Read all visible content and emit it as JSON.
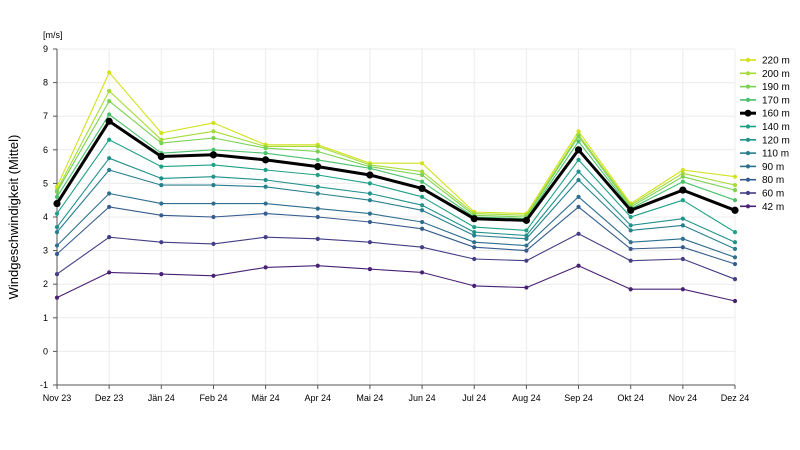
{
  "chart_data": {
    "type": "line",
    "unit_label": "[m/s]",
    "ylabel": "Windgeschwindigkeit (Mittel)",
    "xlabel": "",
    "title": "",
    "ylim": [
      -1,
      9
    ],
    "yticks": [
      -1,
      0,
      1,
      2,
      3,
      4,
      5,
      6,
      7,
      8,
      9
    ],
    "grid": true,
    "legend_position": "right",
    "categories": [
      "Nov 23",
      "Dez 23",
      "Jän 24",
      "Feb 24",
      "Mär 24",
      "Apr 24",
      "Mai 24",
      "Jun 24",
      "Jul 24",
      "Aug 24",
      "Sep 24",
      "Okt 24",
      "Nov 24",
      "Dez 24"
    ],
    "series": [
      {
        "name": "220 m",
        "color": "#d2e21b",
        "highlight": false,
        "values": [
          4.9,
          8.3,
          6.5,
          6.8,
          6.15,
          6.15,
          5.6,
          5.6,
          4.15,
          4.1,
          6.55,
          4.4,
          5.4,
          5.2
        ]
      },
      {
        "name": "200 m",
        "color": "#a5db36",
        "highlight": false,
        "values": [
          4.8,
          7.75,
          6.3,
          6.55,
          6.1,
          6.1,
          5.55,
          5.35,
          4.1,
          4.05,
          6.45,
          4.35,
          5.3,
          4.95
        ]
      },
      {
        "name": "190 m",
        "color": "#7ad151",
        "highlight": false,
        "values": [
          4.75,
          7.45,
          6.2,
          6.35,
          6.05,
          5.95,
          5.5,
          5.25,
          4.05,
          4.0,
          6.4,
          4.3,
          5.2,
          4.8
        ]
      },
      {
        "name": "170 m",
        "color": "#4ac16d",
        "highlight": false,
        "values": [
          4.6,
          7.05,
          5.9,
          6.0,
          5.9,
          5.7,
          5.45,
          5.05,
          4.0,
          3.95,
          6.25,
          4.25,
          5.05,
          4.5
        ]
      },
      {
        "name": "160 m",
        "color": "#000000",
        "highlight": true,
        "values": [
          4.4,
          6.85,
          5.8,
          5.85,
          5.7,
          5.5,
          5.25,
          4.85,
          3.95,
          3.9,
          6.0,
          4.2,
          4.8,
          4.2
        ]
      },
      {
        "name": "140 m",
        "color": "#1fa187",
        "highlight": false,
        "values": [
          4.1,
          6.3,
          5.5,
          5.55,
          5.4,
          5.25,
          5.0,
          4.6,
          3.7,
          3.6,
          5.7,
          4.0,
          4.5,
          3.55
        ]
      },
      {
        "name": "120 m",
        "color": "#21918c",
        "highlight": false,
        "values": [
          3.7,
          5.75,
          5.15,
          5.2,
          5.1,
          4.9,
          4.7,
          4.35,
          3.55,
          3.45,
          5.35,
          3.75,
          3.95,
          3.25
        ]
      },
      {
        "name": "110 m",
        "color": "#277f8e",
        "highlight": false,
        "values": [
          3.55,
          5.4,
          4.95,
          4.95,
          4.9,
          4.7,
          4.5,
          4.2,
          3.45,
          3.35,
          5.1,
          3.6,
          3.75,
          3.05
        ]
      },
      {
        "name": "90 m",
        "color": "#2e6e8e",
        "highlight": false,
        "values": [
          3.15,
          4.7,
          4.4,
          4.4,
          4.4,
          4.25,
          4.1,
          3.85,
          3.25,
          3.15,
          4.6,
          3.25,
          3.35,
          2.8
        ]
      },
      {
        "name": "80 m",
        "color": "#365c8d",
        "highlight": false,
        "values": [
          2.9,
          4.3,
          4.05,
          4.0,
          4.1,
          4.0,
          3.85,
          3.65,
          3.1,
          3.0,
          4.3,
          3.05,
          3.1,
          2.6
        ]
      },
      {
        "name": "60 m",
        "color": "#433e85",
        "highlight": false,
        "values": [
          2.3,
          3.4,
          3.25,
          3.2,
          3.4,
          3.35,
          3.25,
          3.1,
          2.75,
          2.7,
          3.5,
          2.7,
          2.75,
          2.15
        ]
      },
      {
        "name": "42 m",
        "color": "#482173",
        "highlight": false,
        "values": [
          1.6,
          2.35,
          2.3,
          2.25,
          2.5,
          2.55,
          2.45,
          2.35,
          1.95,
          1.9,
          2.55,
          1.85,
          1.85,
          1.5
        ]
      }
    ]
  }
}
